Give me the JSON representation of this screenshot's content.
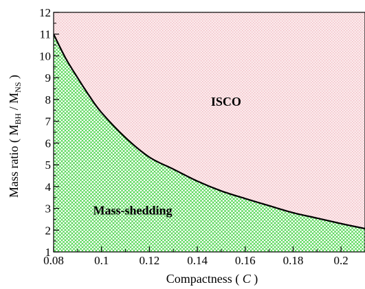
{
  "chart_data": {
    "type": "area",
    "title": "",
    "xlabel": "Compactness  ( C )",
    "xlabel_parts": {
      "prefix": "Compactness  ( ",
      "symbol": "C",
      "suffix": " )"
    },
    "ylabel": "Mass ratio  ( M_BH / M_NS )",
    "ylabel_parts": {
      "prefix": "Mass ratio  ( ",
      "m1": "M",
      "sub1": "BH",
      "slash": " / ",
      "m2": "M",
      "sub2": "NS",
      "suffix": " )"
    },
    "xlim": [
      0.08,
      0.21
    ],
    "ylim": [
      1,
      12
    ],
    "x_ticks": [
      0.08,
      0.1,
      0.12,
      0.14,
      0.16,
      0.18,
      0.2
    ],
    "x_tick_labels": [
      "0.08",
      "0.1",
      "0.12",
      "0.14",
      "0.16",
      "0.18",
      "0.2"
    ],
    "y_ticks": [
      1,
      2,
      3,
      4,
      5,
      6,
      7,
      8,
      9,
      10,
      11,
      12
    ],
    "y_tick_labels": [
      "1",
      "2",
      "3",
      "4",
      "5",
      "6",
      "7",
      "8",
      "9",
      "10",
      "11",
      "12"
    ],
    "grid": false,
    "boundary_curve": {
      "x": [
        0.08,
        0.085,
        0.09,
        0.095,
        0.1,
        0.11,
        0.12,
        0.13,
        0.14,
        0.15,
        0.16,
        0.17,
        0.18,
        0.19,
        0.2,
        0.21
      ],
      "y": [
        11.0,
        9.9,
        9.0,
        8.15,
        7.4,
        6.25,
        5.35,
        4.8,
        4.25,
        3.8,
        3.45,
        3.12,
        2.8,
        2.55,
        2.3,
        2.07
      ]
    },
    "regions": [
      {
        "label": "ISCO",
        "position": "above curve",
        "color": "#f2b8bf",
        "pattern": "dots",
        "label_x": 0.152,
        "label_y": 7.9
      },
      {
        "label": "Mass-shedding",
        "position": "below curve",
        "color": "#3fd23f",
        "pattern": "crosshatch",
        "label_x": 0.113,
        "label_y": 2.9
      }
    ]
  }
}
